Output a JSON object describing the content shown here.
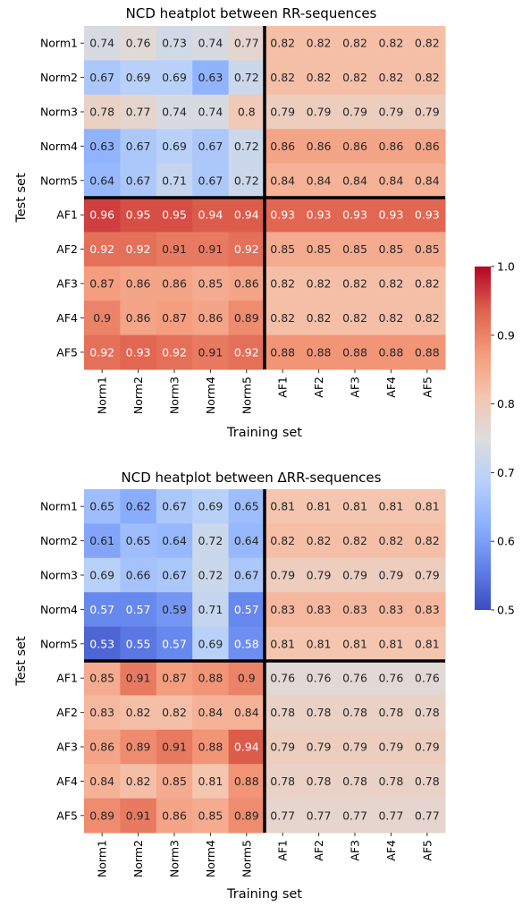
{
  "chart_data": [
    {
      "type": "heatmap",
      "title": "NCD heatplot between RR-sequences",
      "xlabel": "Training set",
      "ylabel": "Test set",
      "x": [
        "Norm1",
        "Norm2",
        "Norm3",
        "Norm4",
        "Norm5",
        "AF1",
        "AF2",
        "AF3",
        "AF4",
        "AF5"
      ],
      "y": [
        "Norm1",
        "Norm2",
        "Norm3",
        "Norm4",
        "Norm5",
        "AF1",
        "AF2",
        "AF3",
        "AF4",
        "AF5"
      ],
      "values": [
        [
          0.74,
          0.76,
          0.73,
          0.74,
          0.77,
          0.82,
          0.82,
          0.82,
          0.82,
          0.82
        ],
        [
          0.67,
          0.69,
          0.69,
          0.63,
          0.72,
          0.82,
          0.82,
          0.82,
          0.82,
          0.82
        ],
        [
          0.78,
          0.77,
          0.74,
          0.74,
          0.8,
          0.79,
          0.79,
          0.79,
          0.79,
          0.79
        ],
        [
          0.63,
          0.67,
          0.69,
          0.67,
          0.72,
          0.86,
          0.86,
          0.86,
          0.86,
          0.86
        ],
        [
          0.64,
          0.67,
          0.71,
          0.67,
          0.72,
          0.84,
          0.84,
          0.84,
          0.84,
          0.84
        ],
        [
          0.96,
          0.95,
          0.95,
          0.94,
          0.94,
          0.93,
          0.93,
          0.93,
          0.93,
          0.93
        ],
        [
          0.92,
          0.92,
          0.91,
          0.91,
          0.92,
          0.85,
          0.85,
          0.85,
          0.85,
          0.85
        ],
        [
          0.87,
          0.86,
          0.86,
          0.85,
          0.86,
          0.82,
          0.82,
          0.82,
          0.82,
          0.82
        ],
        [
          0.9,
          0.86,
          0.87,
          0.86,
          0.89,
          0.82,
          0.82,
          0.82,
          0.82,
          0.82
        ],
        [
          0.92,
          0.93,
          0.92,
          0.91,
          0.92,
          0.88,
          0.88,
          0.88,
          0.88,
          0.88
        ]
      ]
    },
    {
      "type": "heatmap",
      "title": "NCD heatplot between ΔRR-sequences",
      "xlabel": "Training set",
      "ylabel": "Test set",
      "x": [
        "Norm1",
        "Norm2",
        "Norm3",
        "Norm4",
        "Norm5",
        "AF1",
        "AF2",
        "AF3",
        "AF4",
        "AF5"
      ],
      "y": [
        "Norm1",
        "Norm2",
        "Norm3",
        "Norm4",
        "Norm5",
        "AF1",
        "AF2",
        "AF3",
        "AF4",
        "AF5"
      ],
      "values": [
        [
          0.65,
          0.62,
          0.67,
          0.69,
          0.65,
          0.81,
          0.81,
          0.81,
          0.81,
          0.81
        ],
        [
          0.61,
          0.65,
          0.64,
          0.72,
          0.64,
          0.82,
          0.82,
          0.82,
          0.82,
          0.82
        ],
        [
          0.69,
          0.66,
          0.67,
          0.72,
          0.67,
          0.79,
          0.79,
          0.79,
          0.79,
          0.79
        ],
        [
          0.57,
          0.57,
          0.59,
          0.71,
          0.57,
          0.83,
          0.83,
          0.83,
          0.83,
          0.83
        ],
        [
          0.53,
          0.55,
          0.57,
          0.69,
          0.58,
          0.81,
          0.81,
          0.81,
          0.81,
          0.81
        ],
        [
          0.85,
          0.91,
          0.87,
          0.88,
          0.9,
          0.76,
          0.76,
          0.76,
          0.76,
          0.76
        ],
        [
          0.83,
          0.82,
          0.82,
          0.84,
          0.84,
          0.78,
          0.78,
          0.78,
          0.78,
          0.78
        ],
        [
          0.86,
          0.89,
          0.91,
          0.88,
          0.94,
          0.79,
          0.79,
          0.79,
          0.79,
          0.79
        ],
        [
          0.84,
          0.82,
          0.85,
          0.81,
          0.88,
          0.78,
          0.78,
          0.78,
          0.78,
          0.78
        ],
        [
          0.89,
          0.91,
          0.86,
          0.85,
          0.89,
          0.77,
          0.77,
          0.77,
          0.77,
          0.77
        ]
      ]
    }
  ],
  "colorbar": {
    "colormap": "coolwarm",
    "range": [
      0.5,
      1.0
    ],
    "ticks": [
      "0.5",
      "0.6",
      "0.7",
      "0.8",
      "0.9",
      "1.0"
    ]
  }
}
